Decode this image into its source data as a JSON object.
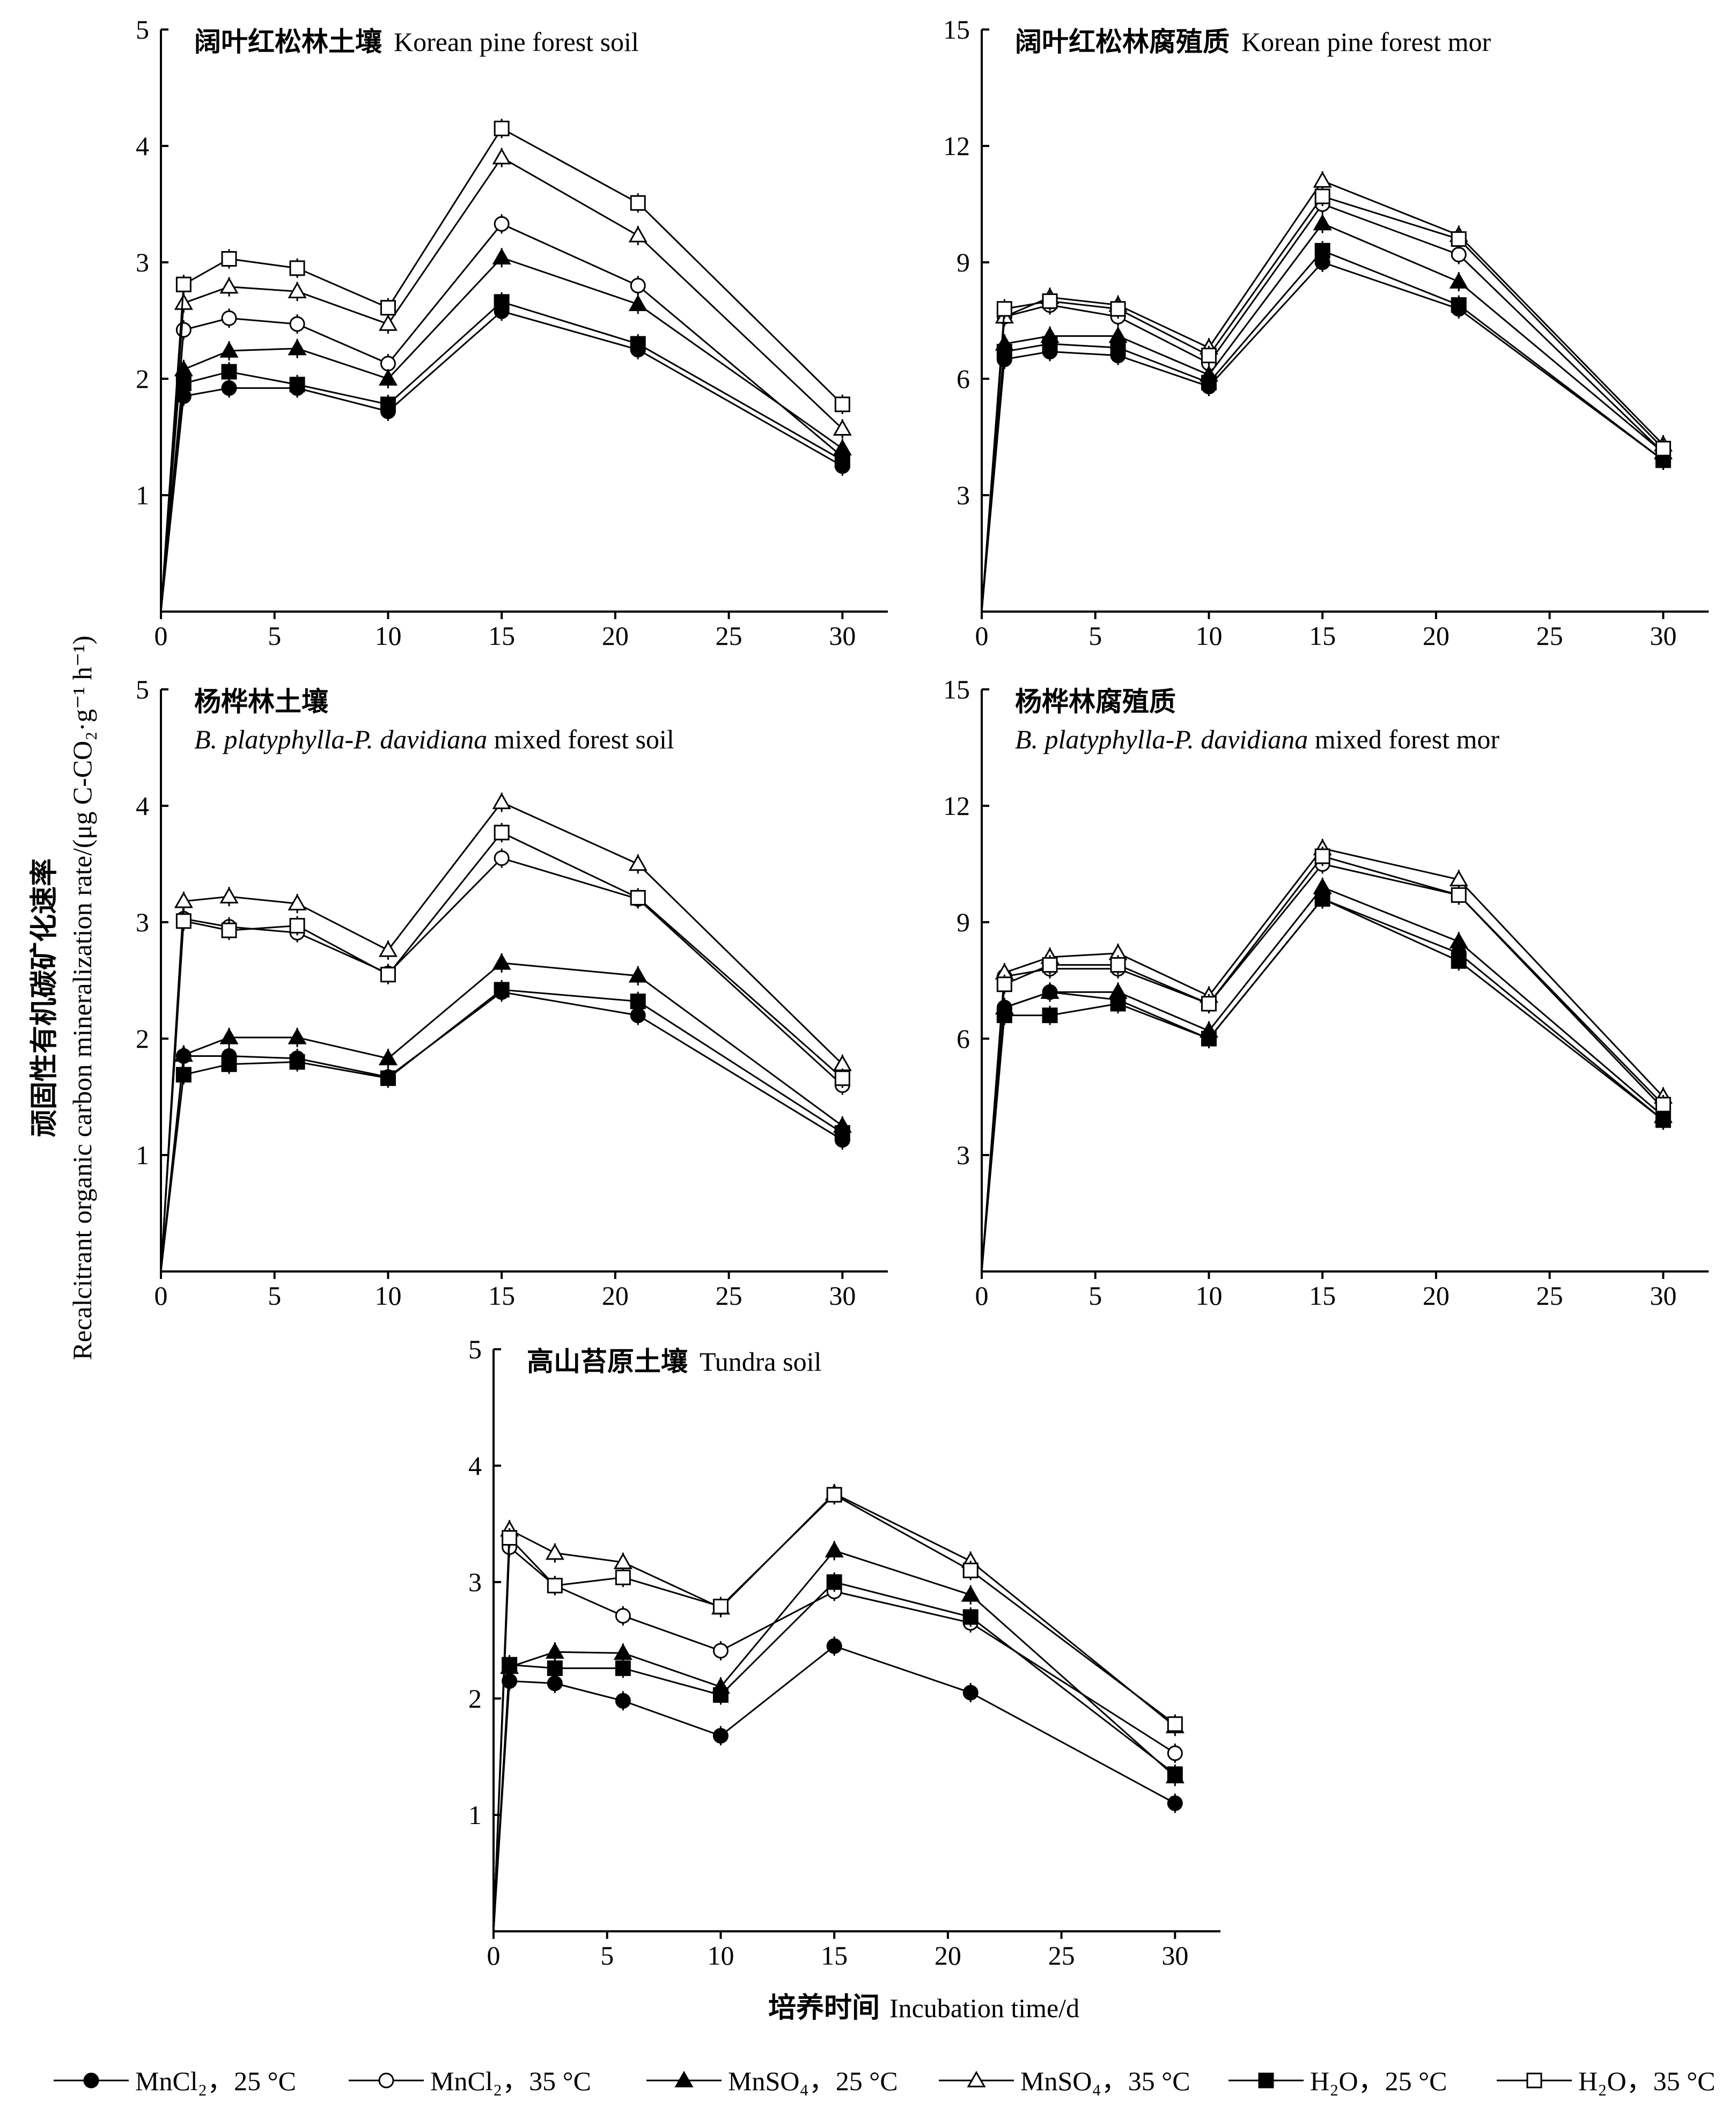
{
  "ylabel_cn": "顽固性有机碳矿化速率",
  "ylabel_en": "Recalcitrant organic carbon mineralization rate/(μg C-CO₂·g⁻¹ h⁻¹)",
  "xlabel_cn": "培养时间",
  "xlabel_en": "Incubation time/d",
  "legend": [
    {
      "label": "MnCl₂，25 °C",
      "marker": "circle",
      "fill": "#000000"
    },
    {
      "label": "MnCl₂，35 °C",
      "marker": "circle",
      "fill": "#ffffff"
    },
    {
      "label": "MnSO₄，25 °C",
      "marker": "triangle",
      "fill": "#000000"
    },
    {
      "label": "MnSO₄，35 °C",
      "marker": "triangle",
      "fill": "#ffffff"
    },
    {
      "label": "H₂O，25 °C",
      "marker": "square",
      "fill": "#000000"
    },
    {
      "label": "H₂O，35 °C",
      "marker": "square",
      "fill": "#ffffff"
    }
  ],
  "chart_data": [
    {
      "type": "line",
      "title_cn": "阔叶红松林土壤",
      "title_en": "Korean pine forest soil",
      "xlim": [
        0,
        32
      ],
      "ylim": [
        0,
        5
      ],
      "xticks": [
        0,
        5,
        10,
        15,
        20,
        25,
        30
      ],
      "yticks": [
        1,
        2,
        3,
        4,
        5
      ],
      "x": [
        0,
        1,
        3,
        6,
        10,
        15,
        21,
        30
      ],
      "series": [
        {
          "values": [
            0,
            1.85,
            1.92,
            1.92,
            1.72,
            2.58,
            2.25,
            1.25
          ],
          "marker": "circle",
          "fill": "#000000"
        },
        {
          "values": [
            0,
            2.42,
            2.52,
            2.47,
            2.13,
            3.33,
            2.8,
            1.33
          ],
          "marker": "circle",
          "fill": "#ffffff"
        },
        {
          "values": [
            0,
            2.08,
            2.24,
            2.26,
            2.0,
            3.04,
            2.64,
            1.4
          ],
          "marker": "triangle",
          "fill": "#000000"
        },
        {
          "values": [
            0,
            2.65,
            2.79,
            2.75,
            2.47,
            3.9,
            3.23,
            1.57
          ],
          "marker": "triangle",
          "fill": "#ffffff"
        },
        {
          "values": [
            0,
            1.96,
            2.06,
            1.95,
            1.78,
            2.66,
            2.3,
            1.3
          ],
          "marker": "square",
          "fill": "#000000"
        },
        {
          "values": [
            0,
            2.81,
            3.03,
            2.95,
            2.61,
            4.15,
            3.51,
            1.78
          ],
          "marker": "square",
          "fill": "#ffffff"
        }
      ]
    },
    {
      "type": "line",
      "title_cn": "阔叶红松林腐殖质",
      "title_en": "Korean pine forest mor",
      "xlim": [
        0,
        32
      ],
      "ylim": [
        0,
        15
      ],
      "xticks": [
        0,
        5,
        10,
        15,
        20,
        25,
        30
      ],
      "yticks": [
        3,
        6,
        9,
        12,
        15
      ],
      "x": [
        0,
        1,
        3,
        6,
        10,
        15,
        21,
        30
      ],
      "series": [
        {
          "values": [
            0,
            6.5,
            6.7,
            6.6,
            5.8,
            9.0,
            7.8,
            3.9
          ],
          "marker": "circle",
          "fill": "#000000"
        },
        {
          "values": [
            0,
            7.6,
            7.9,
            7.6,
            6.4,
            10.5,
            9.2,
            4.1
          ],
          "marker": "circle",
          "fill": "#ffffff"
        },
        {
          "values": [
            0,
            6.9,
            7.1,
            7.1,
            6.1,
            10.0,
            8.5,
            4.1
          ],
          "marker": "triangle",
          "fill": "#000000"
        },
        {
          "values": [
            0,
            7.6,
            8.1,
            7.9,
            6.8,
            11.1,
            9.7,
            4.3
          ],
          "marker": "triangle",
          "fill": "#ffffff"
        },
        {
          "values": [
            0,
            6.7,
            6.9,
            6.8,
            5.9,
            9.3,
            7.9,
            3.9
          ],
          "marker": "square",
          "fill": "#000000"
        },
        {
          "values": [
            0,
            7.8,
            8.0,
            7.8,
            6.6,
            10.7,
            9.6,
            4.2
          ],
          "marker": "square",
          "fill": "#ffffff"
        }
      ]
    },
    {
      "type": "line",
      "title_cn": "杨桦林土壤",
      "title_en": "B. platyphylla-P. davidiana mixed forest soil",
      "xlim": [
        0,
        32
      ],
      "ylim": [
        0,
        5
      ],
      "xticks": [
        0,
        5,
        10,
        15,
        20,
        25,
        30
      ],
      "yticks": [
        1,
        2,
        3,
        4,
        5
      ],
      "x": [
        0,
        1,
        3,
        6,
        10,
        15,
        21,
        30
      ],
      "series": [
        {
          "values": [
            0,
            1.85,
            1.85,
            1.83,
            1.67,
            2.4,
            2.2,
            1.13
          ],
          "marker": "circle",
          "fill": "#000000"
        },
        {
          "values": [
            0,
            3.03,
            2.96,
            2.91,
            2.56,
            3.55,
            3.2,
            1.6
          ],
          "marker": "circle",
          "fill": "#ffffff"
        },
        {
          "values": [
            0,
            1.86,
            2.01,
            2.01,
            1.83,
            2.65,
            2.54,
            1.25
          ],
          "marker": "triangle",
          "fill": "#000000"
        },
        {
          "values": [
            0,
            3.18,
            3.22,
            3.16,
            2.76,
            4.03,
            3.5,
            1.78
          ],
          "marker": "triangle",
          "fill": "#ffffff"
        },
        {
          "values": [
            0,
            1.69,
            1.78,
            1.8,
            1.66,
            2.42,
            2.32,
            1.19
          ],
          "marker": "square",
          "fill": "#000000"
        },
        {
          "values": [
            0,
            3.01,
            2.93,
            2.97,
            2.55,
            3.77,
            3.21,
            1.66
          ],
          "marker": "square",
          "fill": "#ffffff"
        }
      ]
    },
    {
      "type": "line",
      "title_cn": "杨桦林腐殖质",
      "title_en": "B. platyphylla-P. davidiana mixed forest mor",
      "xlim": [
        0,
        32
      ],
      "ylim": [
        0,
        15
      ],
      "xticks": [
        0,
        5,
        10,
        15,
        20,
        25,
        30
      ],
      "yticks": [
        3,
        6,
        9,
        12,
        15
      ],
      "x": [
        0,
        1,
        3,
        6,
        10,
        15,
        21,
        30
      ],
      "series": [
        {
          "values": [
            0,
            6.8,
            7.2,
            7.0,
            6.0,
            9.6,
            8.2,
            3.9
          ],
          "marker": "circle",
          "fill": "#000000"
        },
        {
          "values": [
            0,
            7.6,
            7.8,
            7.8,
            6.9,
            10.5,
            9.7,
            4.2
          ],
          "marker": "circle",
          "fill": "#ffffff"
        },
        {
          "values": [
            0,
            6.8,
            7.2,
            7.2,
            6.2,
            9.9,
            8.5,
            4.0
          ],
          "marker": "triangle",
          "fill": "#000000"
        },
        {
          "values": [
            0,
            7.7,
            8.1,
            8.2,
            7.1,
            10.9,
            10.1,
            4.5
          ],
          "marker": "triangle",
          "fill": "#ffffff"
        },
        {
          "values": [
            0,
            6.6,
            6.6,
            6.9,
            6.0,
            9.6,
            8.0,
            3.9
          ],
          "marker": "square",
          "fill": "#000000"
        },
        {
          "values": [
            0,
            7.4,
            7.9,
            7.9,
            6.9,
            10.7,
            9.7,
            4.3
          ],
          "marker": "square",
          "fill": "#ffffff"
        }
      ]
    },
    {
      "type": "line",
      "title_cn": "高山苔原土壤",
      "title_en": "Tundra soil",
      "xlim": [
        0,
        32
      ],
      "ylim": [
        0,
        5
      ],
      "xticks": [
        0,
        5,
        10,
        15,
        20,
        25,
        30
      ],
      "yticks": [
        1,
        2,
        3,
        4,
        5
      ],
      "x": [
        0,
        0.7,
        2.7,
        5.7,
        10,
        15,
        21,
        30
      ],
      "series": [
        {
          "values": [
            0,
            2.15,
            2.13,
            1.98,
            1.68,
            2.45,
            2.05,
            1.1
          ],
          "marker": "circle",
          "fill": "#000000"
        },
        {
          "values": [
            0,
            3.3,
            2.97,
            2.71,
            2.41,
            2.92,
            2.65,
            1.53
          ],
          "marker": "circle",
          "fill": "#ffffff"
        },
        {
          "values": [
            0,
            2.27,
            2.4,
            2.39,
            2.1,
            3.27,
            2.89,
            1.33
          ],
          "marker": "triangle",
          "fill": "#000000"
        },
        {
          "values": [
            0,
            3.45,
            3.25,
            3.17,
            2.78,
            3.76,
            3.18,
            1.76
          ],
          "marker": "triangle",
          "fill": "#ffffff"
        },
        {
          "values": [
            0,
            2.29,
            2.26,
            2.26,
            2.03,
            3.0,
            2.7,
            1.35
          ],
          "marker": "square",
          "fill": "#000000"
        },
        {
          "values": [
            0,
            3.38,
            2.97,
            3.04,
            2.79,
            3.75,
            3.1,
            1.78
          ],
          "marker": "square",
          "fill": "#ffffff"
        }
      ]
    }
  ]
}
